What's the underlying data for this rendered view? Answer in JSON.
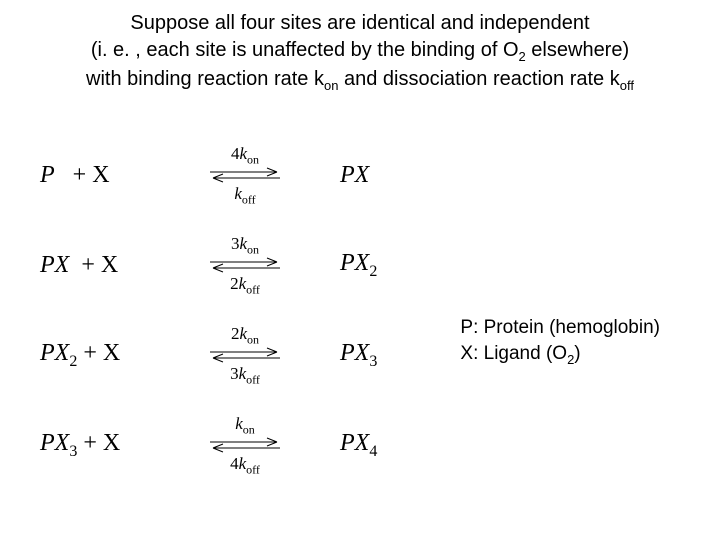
{
  "header": {
    "line1_a": "Suppose all four sites are identical and independent",
    "line2_a": "(i. e. , each site is unaffected by the binding of O",
    "line2_sub": "2",
    "line2_b": " elsewhere)",
    "line3_a": "with binding reaction rate k",
    "line3_sub1": "on",
    "line3_b": " and dissociation reaction rate k",
    "line3_sub2": "off"
  },
  "reactions": [
    {
      "lhs_a": "P",
      "lhs_b": "   + X",
      "top_coef": "4",
      "top_k": "k",
      "top_sub": "on",
      "bot_coef": "",
      "bot_k": "k",
      "bot_sub": "off",
      "rhs_a": "PX",
      "rhs_sub": ""
    },
    {
      "lhs_a": "PX",
      "lhs_b": "  + X",
      "top_coef": "3",
      "top_k": "k",
      "top_sub": "on",
      "bot_coef": "2",
      "bot_k": "k",
      "bot_sub": "off",
      "rhs_a": "PX",
      "rhs_sub": "2"
    },
    {
      "lhs_a": "PX",
      "lhs_sub": "2",
      "lhs_b": " + X",
      "top_coef": "2",
      "top_k": "k",
      "top_sub": "on",
      "bot_coef": "3",
      "bot_k": "k",
      "bot_sub": "off",
      "rhs_a": "PX",
      "rhs_sub": "3"
    },
    {
      "lhs_a": "PX",
      "lhs_sub": "3",
      "lhs_b": " + X",
      "top_coef": "",
      "top_k": "k",
      "top_sub": "on",
      "bot_coef": "4",
      "bot_k": "k",
      "bot_sub": "off",
      "rhs_a": "PX",
      "rhs_sub": "4"
    }
  ],
  "legend": {
    "p_label": "P:  Protein (hemoglobin)",
    "x_a": "X:  Ligand (O",
    "x_sub": "2",
    "x_b": ")"
  },
  "style": {
    "text_color": "#000000",
    "bg_color": "#ffffff",
    "arrow_color": "#000000"
  }
}
